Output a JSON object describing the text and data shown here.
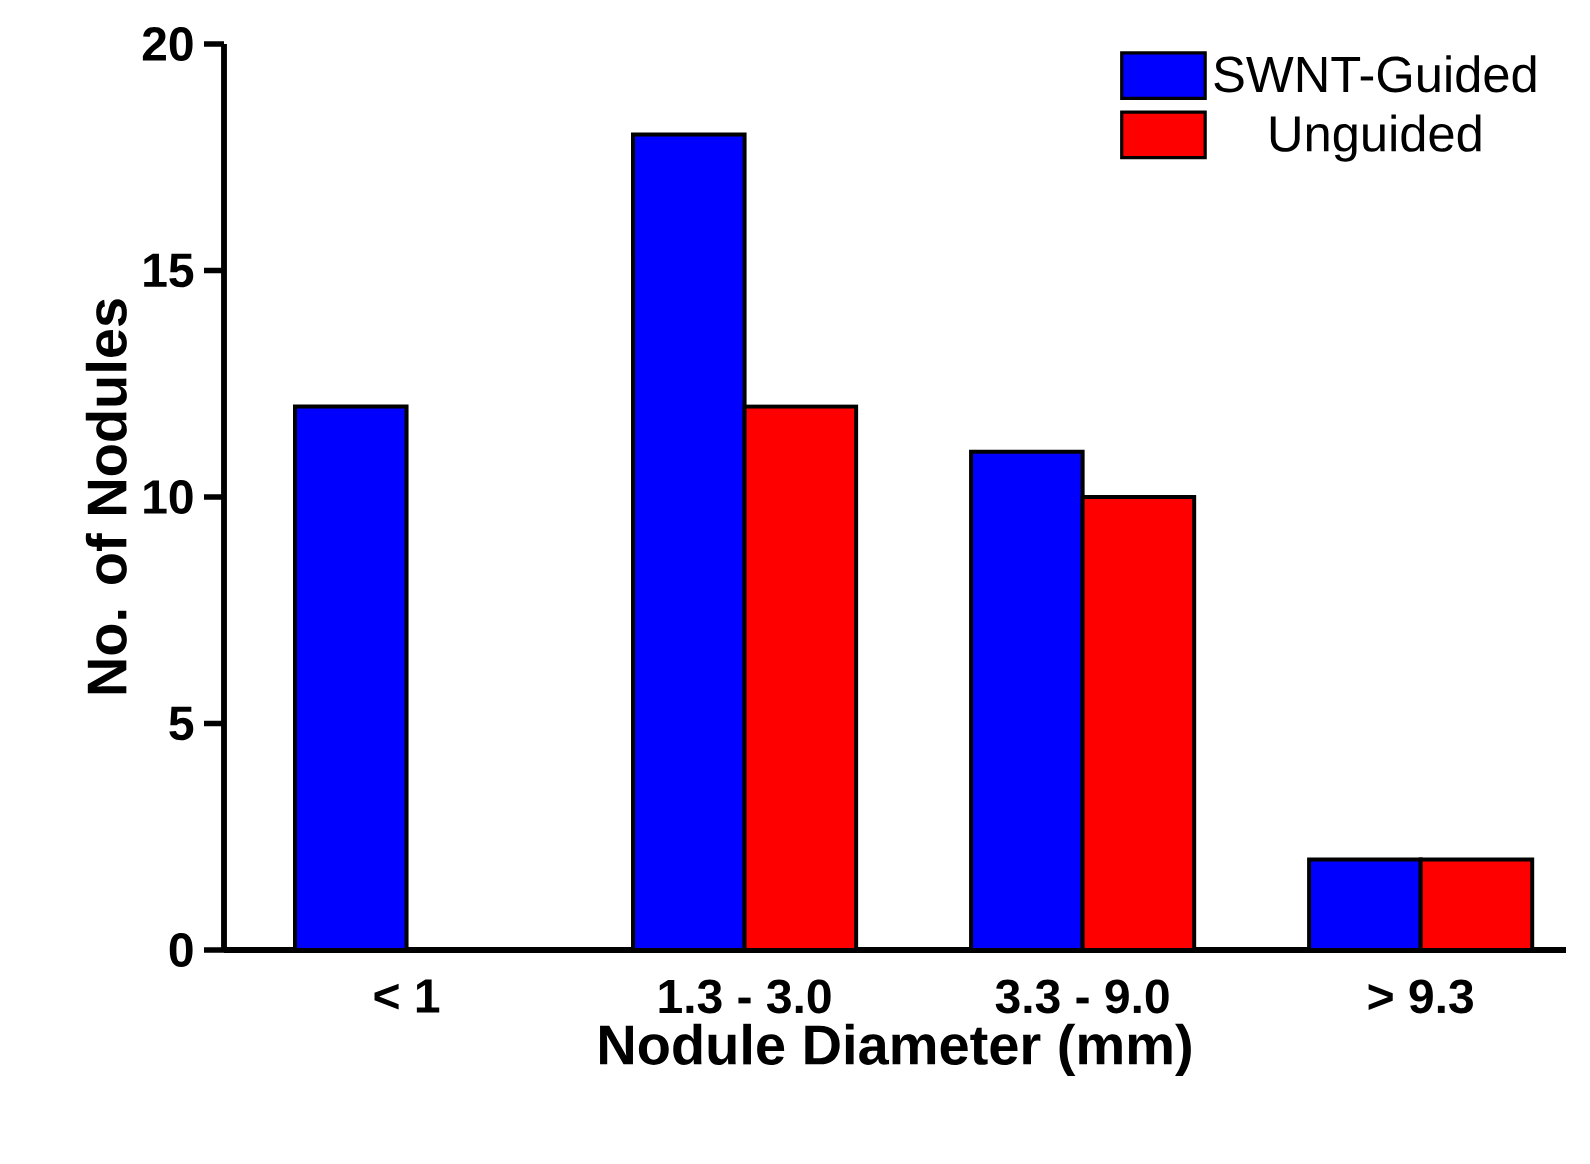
{
  "chart_data": {
    "type": "bar",
    "xlabel": "Nodule  Diameter (mm)",
    "ylabel": "No. of Nodules",
    "categories": [
      "< 1",
      "1.3 - 3.0",
      "3.3 - 9.0",
      "> 9.3"
    ],
    "series": [
      {
        "name": "SWNT-Guided",
        "color": "#0000ff",
        "values": [
          12,
          18,
          11,
          2
        ]
      },
      {
        "name": "Unguided",
        "color": "#ff0000",
        "values": [
          null,
          12,
          10,
          2
        ]
      }
    ],
    "ylim": [
      0,
      20
    ],
    "yticks": [
      0,
      5,
      10,
      15,
      20
    ],
    "legend": "top right",
    "grid": false
  }
}
